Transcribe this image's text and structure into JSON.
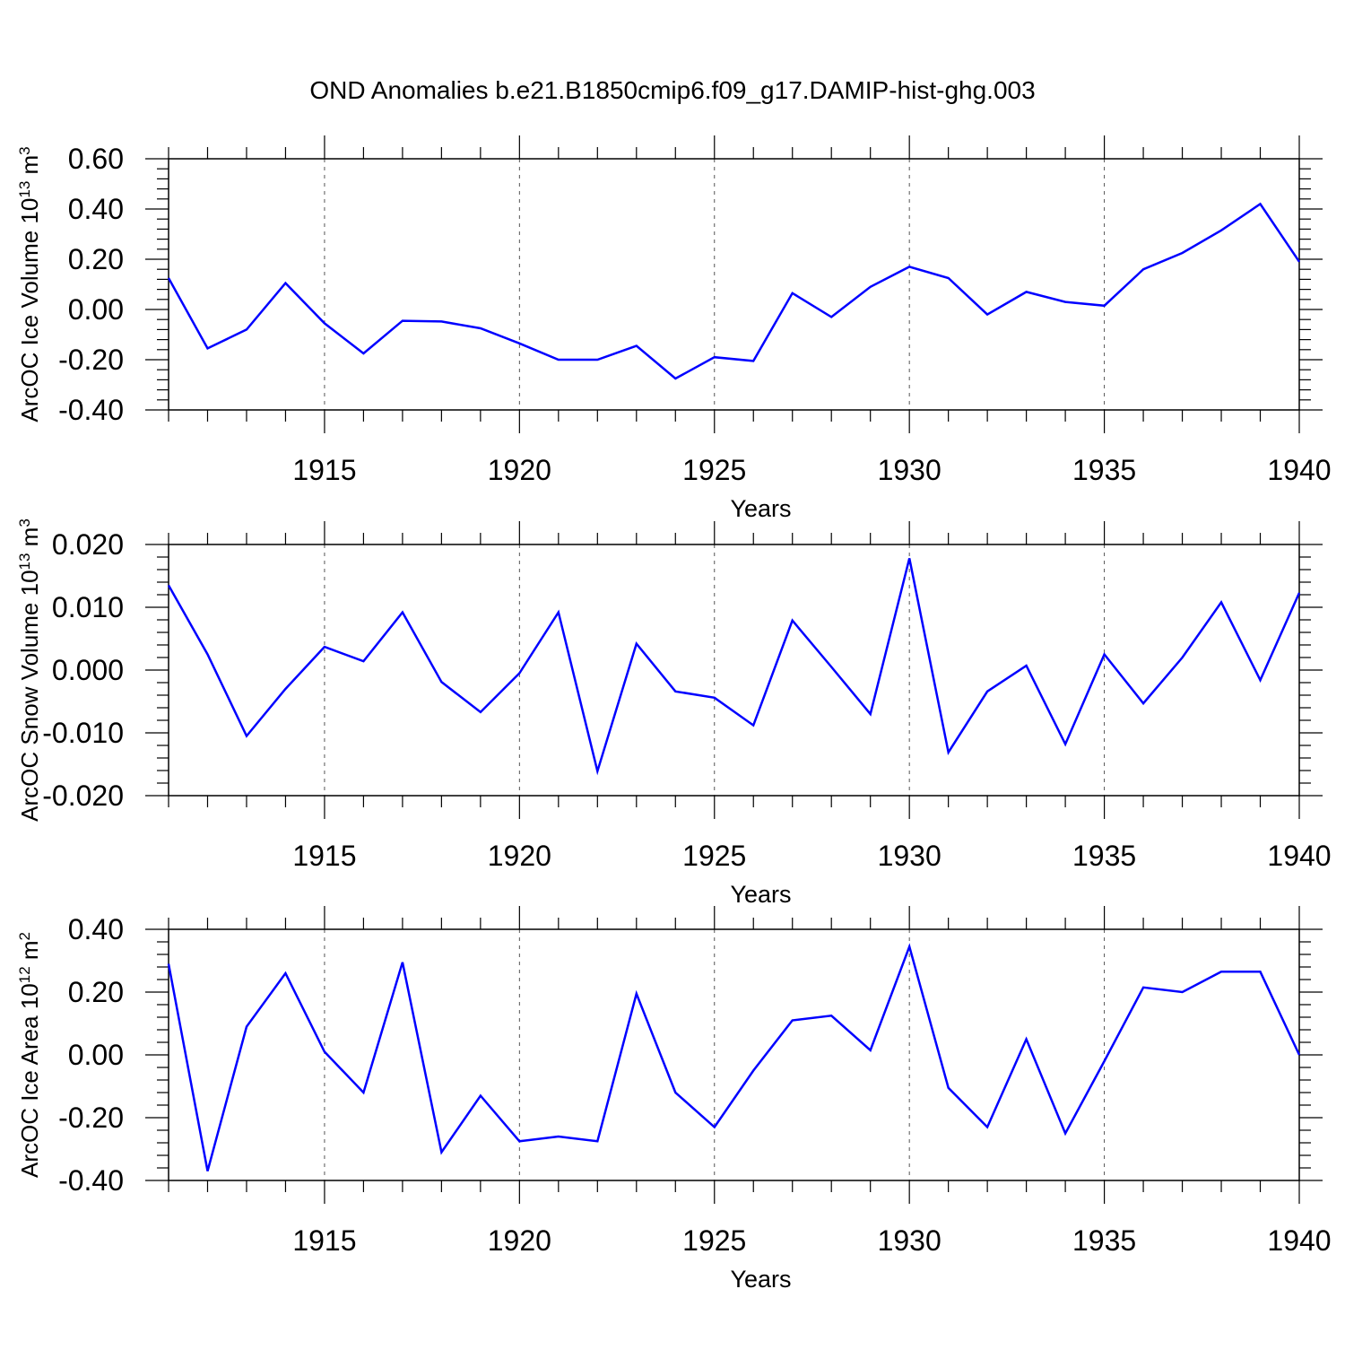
{
  "title": "OND Anomalies b.e21.B1850cmip6.f09_g17.DAMIP-hist-ghg.003",
  "line_color": "#0000ff",
  "chart_data": [
    {
      "type": "line",
      "title": "OND Anomalies b.e21.B1850cmip6.f09_g17.DAMIP-hist-ghg.003",
      "ylabel": "ArcOC Ice Volume 10",
      "ylabel_exp": "13",
      "ylabel_unit": " m",
      "ylabel_unit_exp": "3",
      "xlabel": "Years",
      "xlim": [
        1911,
        1940
      ],
      "ylim": [
        -0.4,
        0.6
      ],
      "yticks": [
        "0.60",
        "0.40",
        "0.20",
        "0.00",
        "-0.20",
        "-0.40"
      ],
      "ytick_values": [
        0.6,
        0.4,
        0.2,
        0.0,
        -0.2,
        -0.4
      ],
      "xticks": [
        "1915",
        "1920",
        "1925",
        "1930",
        "1935",
        "1940"
      ],
      "xtick_values": [
        1915,
        1920,
        1925,
        1930,
        1935,
        1940
      ],
      "x": [
        1911,
        1912,
        1913,
        1914,
        1915,
        1916,
        1917,
        1918,
        1919,
        1920,
        1921,
        1922,
        1923,
        1924,
        1925,
        1926,
        1927,
        1928,
        1929,
        1930,
        1931,
        1932,
        1933,
        1934,
        1935,
        1936,
        1937,
        1938,
        1939,
        1940
      ],
      "values": [
        0.125,
        -0.155,
        -0.08,
        0.105,
        -0.055,
        -0.175,
        -0.045,
        -0.048,
        -0.075,
        -0.135,
        -0.2,
        -0.2,
        -0.145,
        -0.275,
        -0.19,
        -0.205,
        0.065,
        -0.03,
        0.09,
        0.17,
        0.125,
        -0.02,
        0.07,
        0.03,
        0.015,
        0.16,
        0.225,
        0.315,
        0.42,
        0.19
      ]
    },
    {
      "type": "line",
      "ylabel": "ArcOC Snow Volume 10",
      "ylabel_exp": "13",
      "ylabel_unit": " m",
      "ylabel_unit_exp": "3",
      "xlabel": "Years",
      "xlim": [
        1911,
        1940
      ],
      "ylim": [
        -0.02,
        0.02
      ],
      "yticks": [
        "0.020",
        "0.010",
        "0.000",
        "-0.010",
        "-0.020"
      ],
      "ytick_values": [
        0.02,
        0.01,
        0.0,
        -0.01,
        -0.02
      ],
      "xticks": [
        "1915",
        "1920",
        "1925",
        "1930",
        "1935",
        "1940"
      ],
      "xtick_values": [
        1915,
        1920,
        1925,
        1930,
        1935,
        1940
      ],
      "x": [
        1911,
        1912,
        1913,
        1914,
        1915,
        1916,
        1917,
        1918,
        1919,
        1920,
        1921,
        1922,
        1923,
        1924,
        1925,
        1926,
        1927,
        1928,
        1929,
        1930,
        1931,
        1932,
        1933,
        1934,
        1935,
        1936,
        1937,
        1938,
        1939,
        1940
      ],
      "values": [
        0.0135,
        0.0025,
        -0.0105,
        -0.003,
        0.0037,
        0.0014,
        0.0092,
        -0.0019,
        -0.0067,
        -0.0005,
        0.0092,
        -0.0161,
        0.0042,
        -0.0034,
        -0.0044,
        -0.0088,
        0.0079,
        0.0005,
        -0.007,
        0.0178,
        -0.0131,
        -0.0034,
        0.0007,
        -0.0118,
        0.0025,
        -0.0053,
        0.002,
        0.0108,
        -0.0016,
        0.0123
      ]
    },
    {
      "type": "line",
      "ylabel": "ArcOC Ice Area 10",
      "ylabel_exp": "12",
      "ylabel_unit": " m",
      "ylabel_unit_exp": "2",
      "xlabel": "Years",
      "xlim": [
        1911,
        1940
      ],
      "ylim": [
        -0.4,
        0.4
      ],
      "yticks": [
        "0.40",
        "0.20",
        "0.00",
        "-0.20",
        "-0.40"
      ],
      "ytick_values": [
        0.4,
        0.2,
        0.0,
        -0.2,
        -0.4
      ],
      "xticks": [
        "1915",
        "1920",
        "1925",
        "1930",
        "1935",
        "1940"
      ],
      "xtick_values": [
        1915,
        1920,
        1925,
        1930,
        1935,
        1940
      ],
      "x": [
        1911,
        1912,
        1913,
        1914,
        1915,
        1916,
        1917,
        1918,
        1919,
        1920,
        1921,
        1922,
        1923,
        1924,
        1925,
        1926,
        1927,
        1928,
        1929,
        1930,
        1931,
        1932,
        1933,
        1934,
        1935,
        1936,
        1937,
        1938,
        1939,
        1940
      ],
      "values": [
        0.29,
        -0.37,
        0.09,
        0.26,
        0.01,
        -0.12,
        0.295,
        -0.31,
        -0.13,
        -0.275,
        -0.26,
        -0.275,
        0.195,
        -0.12,
        -0.23,
        -0.05,
        0.11,
        0.125,
        0.015,
        0.345,
        -0.105,
        -0.23,
        0.05,
        -0.25,
        -0.02,
        0.215,
        0.2,
        0.265,
        0.265,
        0.0
      ]
    }
  ]
}
